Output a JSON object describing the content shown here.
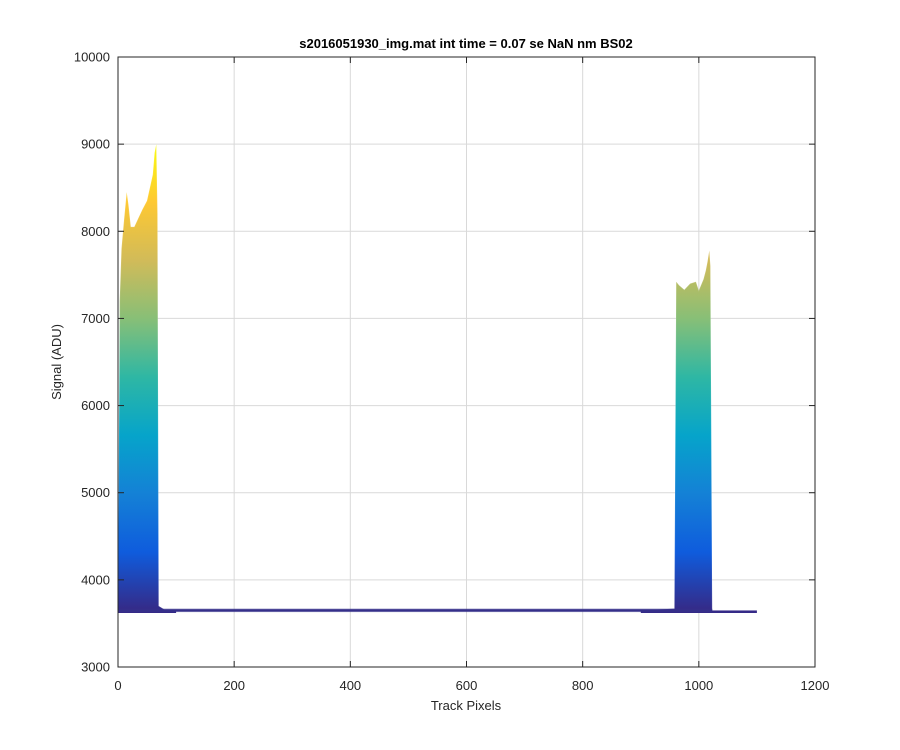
{
  "chart_data": {
    "type": "line",
    "title": "s2016051930_img.mat int time = 0.07 se  NaN nm BS02",
    "xlabel": "Track Pixels",
    "ylabel": "Signal (ADU)",
    "xlim": [
      0,
      1200
    ],
    "ylim": [
      3000,
      10000
    ],
    "xticks": [
      0,
      200,
      400,
      600,
      800,
      1000,
      1200
    ],
    "yticks": [
      3000,
      4000,
      5000,
      6000,
      7000,
      8000,
      9000,
      10000
    ],
    "xtick_labels": [
      "0",
      "200",
      "400",
      "600",
      "800",
      "1000",
      "1200"
    ],
    "ytick_labels": [
      "3000",
      "4000",
      "5000",
      "6000",
      "7000",
      "8000",
      "9000",
      "10000"
    ],
    "grid": true,
    "colormap": "parula",
    "baseline": 3650,
    "series": [
      {
        "x": [
          0,
          1,
          3,
          6,
          10,
          15,
          18,
          22,
          28,
          35,
          42,
          50,
          55,
          60,
          63,
          66,
          68,
          70,
          75,
          80,
          100
        ],
        "y": [
          3650,
          4800,
          7200,
          7800,
          8100,
          8450,
          8300,
          8050,
          8050,
          8150,
          8250,
          8350,
          8500,
          8650,
          8900,
          9000,
          8200,
          3700,
          3680,
          3660,
          3650
        ]
      },
      {
        "x": [
          900,
          958,
          961,
          966,
          975,
          985,
          995,
          1000,
          1008,
          1012,
          1015,
          1018,
          1020,
          1023,
          1030,
          1100
        ],
        "y": [
          3650,
          3670,
          7420,
          7380,
          7330,
          7400,
          7420,
          7320,
          7450,
          7550,
          7650,
          7780,
          7600,
          3650,
          3650,
          3650
        ]
      }
    ],
    "colors": {
      "axes": "#262626",
      "grid": "#d9d9d9",
      "baseline_line": "#35308a",
      "parula": [
        "#352a87",
        "#0f5cdd",
        "#1481d6",
        "#06a4ca",
        "#2eb7a4",
        "#87bf77",
        "#d1bb59",
        "#fec832",
        "#f9fb0e"
      ]
    }
  }
}
